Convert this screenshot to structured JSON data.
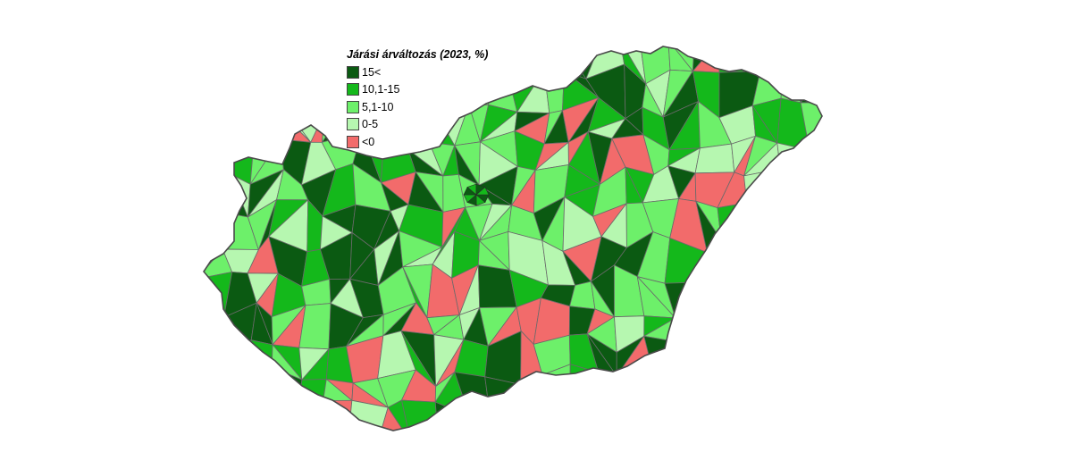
{
  "legend": {
    "title": "Járási árváltozás (2023, %)",
    "classes": [
      {
        "label": "15<",
        "color": "#0b5a12"
      },
      {
        "label": "10,1-15",
        "color": "#14b81b"
      },
      {
        "label": "5,1-10",
        "color": "#6df06a"
      },
      {
        "label": "0-5",
        "color": "#b6f7b0"
      },
      {
        "label": "<0",
        "color": "#f26b6b"
      }
    ]
  },
  "colors": {
    "district_border": "#6a6a6a",
    "country_border": "#4a4a4a",
    "background": "#ffffff"
  }
}
